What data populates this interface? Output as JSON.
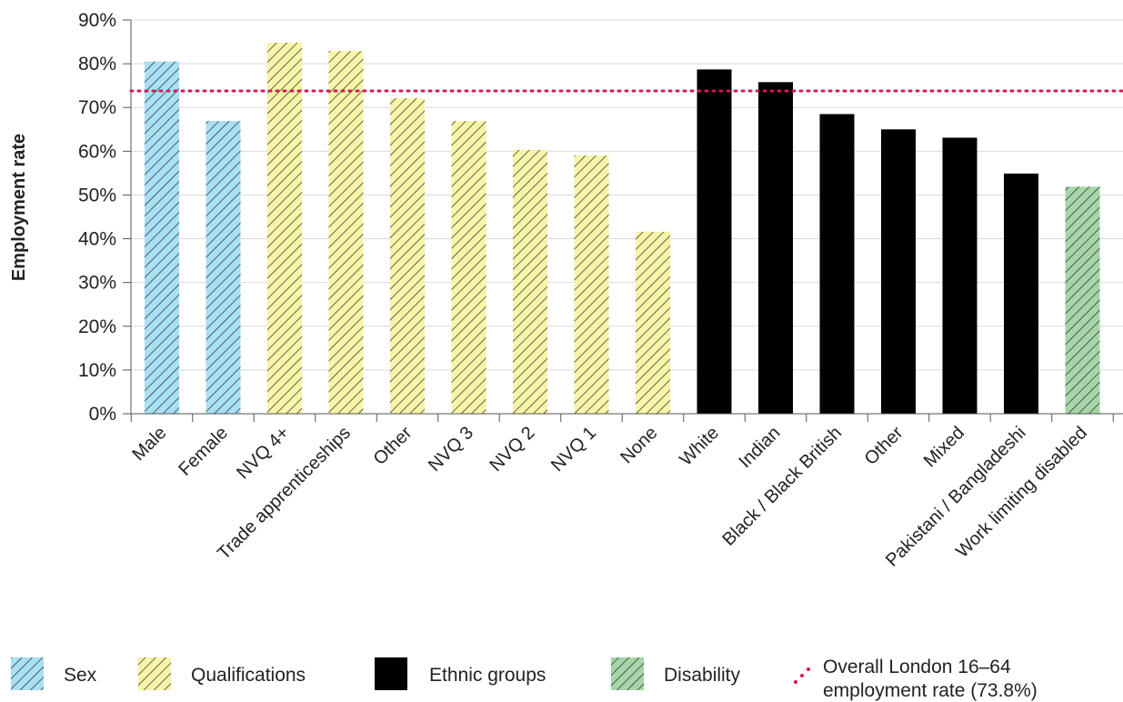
{
  "chart_data": {
    "type": "bar",
    "title": "",
    "xlabel": "",
    "ylabel": "Employment rate",
    "ylim": [
      0,
      90
    ],
    "y_ticks": [
      "0%",
      "10%",
      "20%",
      "30%",
      "40%",
      "50%",
      "60%",
      "70%",
      "80%",
      "90%"
    ],
    "grid": true,
    "legend_position": "bottom",
    "categories": [
      "Male",
      "Female",
      "NVQ 4+",
      "Trade apprenticeships",
      "Other",
      "NVQ 3",
      "NVQ 2",
      "NVQ 1",
      "None",
      "White",
      "Indian",
      "Black / Black British",
      "Other",
      "Mixed",
      "Pakistani / Bangladeshi",
      "Work limiting disabled"
    ],
    "values": [
      80.5,
      66.9,
      84.8,
      82.9,
      72.1,
      66.9,
      60.3,
      59.0,
      41.6,
      78.7,
      75.8,
      68.5,
      65.0,
      63.1,
      54.9,
      51.9
    ],
    "groups": [
      "Sex",
      "Sex",
      "Qualifications",
      "Qualifications",
      "Qualifications",
      "Qualifications",
      "Qualifications",
      "Qualifications",
      "Qualifications",
      "Ethnic groups",
      "Ethnic groups",
      "Ethnic groups",
      "Ethnic groups",
      "Ethnic groups",
      "Ethnic groups",
      "Disability"
    ],
    "series": [
      {
        "name": "Sex",
        "color": "#a8e0f4"
      },
      {
        "name": "Qualifications",
        "color": "#f7f5a8"
      },
      {
        "name": "Ethnic groups",
        "color": "#f6b3c7"
      },
      {
        "name": "Disability",
        "color": "#a6d5a8"
      }
    ],
    "reference_line": {
      "value": 73.8,
      "color": "#d0185a",
      "label_line1": "Overall London 16–64",
      "label_line2": "employment rate (73.8%)"
    }
  }
}
